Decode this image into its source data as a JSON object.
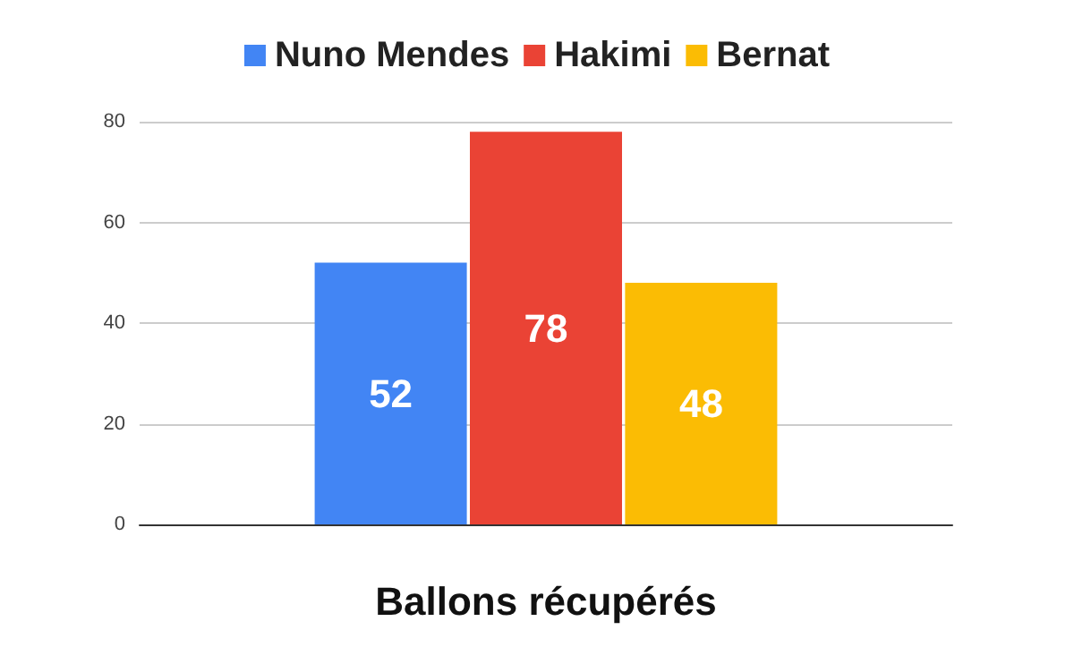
{
  "chart_data": {
    "type": "bar",
    "xlabel": "Ballons récupérés",
    "categories": [
      null
    ],
    "series": [
      {
        "name": "Nuno Mendes",
        "color": "#4285f4",
        "values": [
          52
        ]
      },
      {
        "name": "Hakimi",
        "color": "#ea4335",
        "values": [
          78
        ]
      },
      {
        "name": "Bernat",
        "color": "#fbbc04",
        "values": [
          48
        ]
      }
    ],
    "ylim": [
      0,
      80
    ],
    "yticks": [
      0,
      20,
      40,
      60,
      80
    ],
    "grid": "y",
    "legend": "top",
    "data_labels": true
  }
}
